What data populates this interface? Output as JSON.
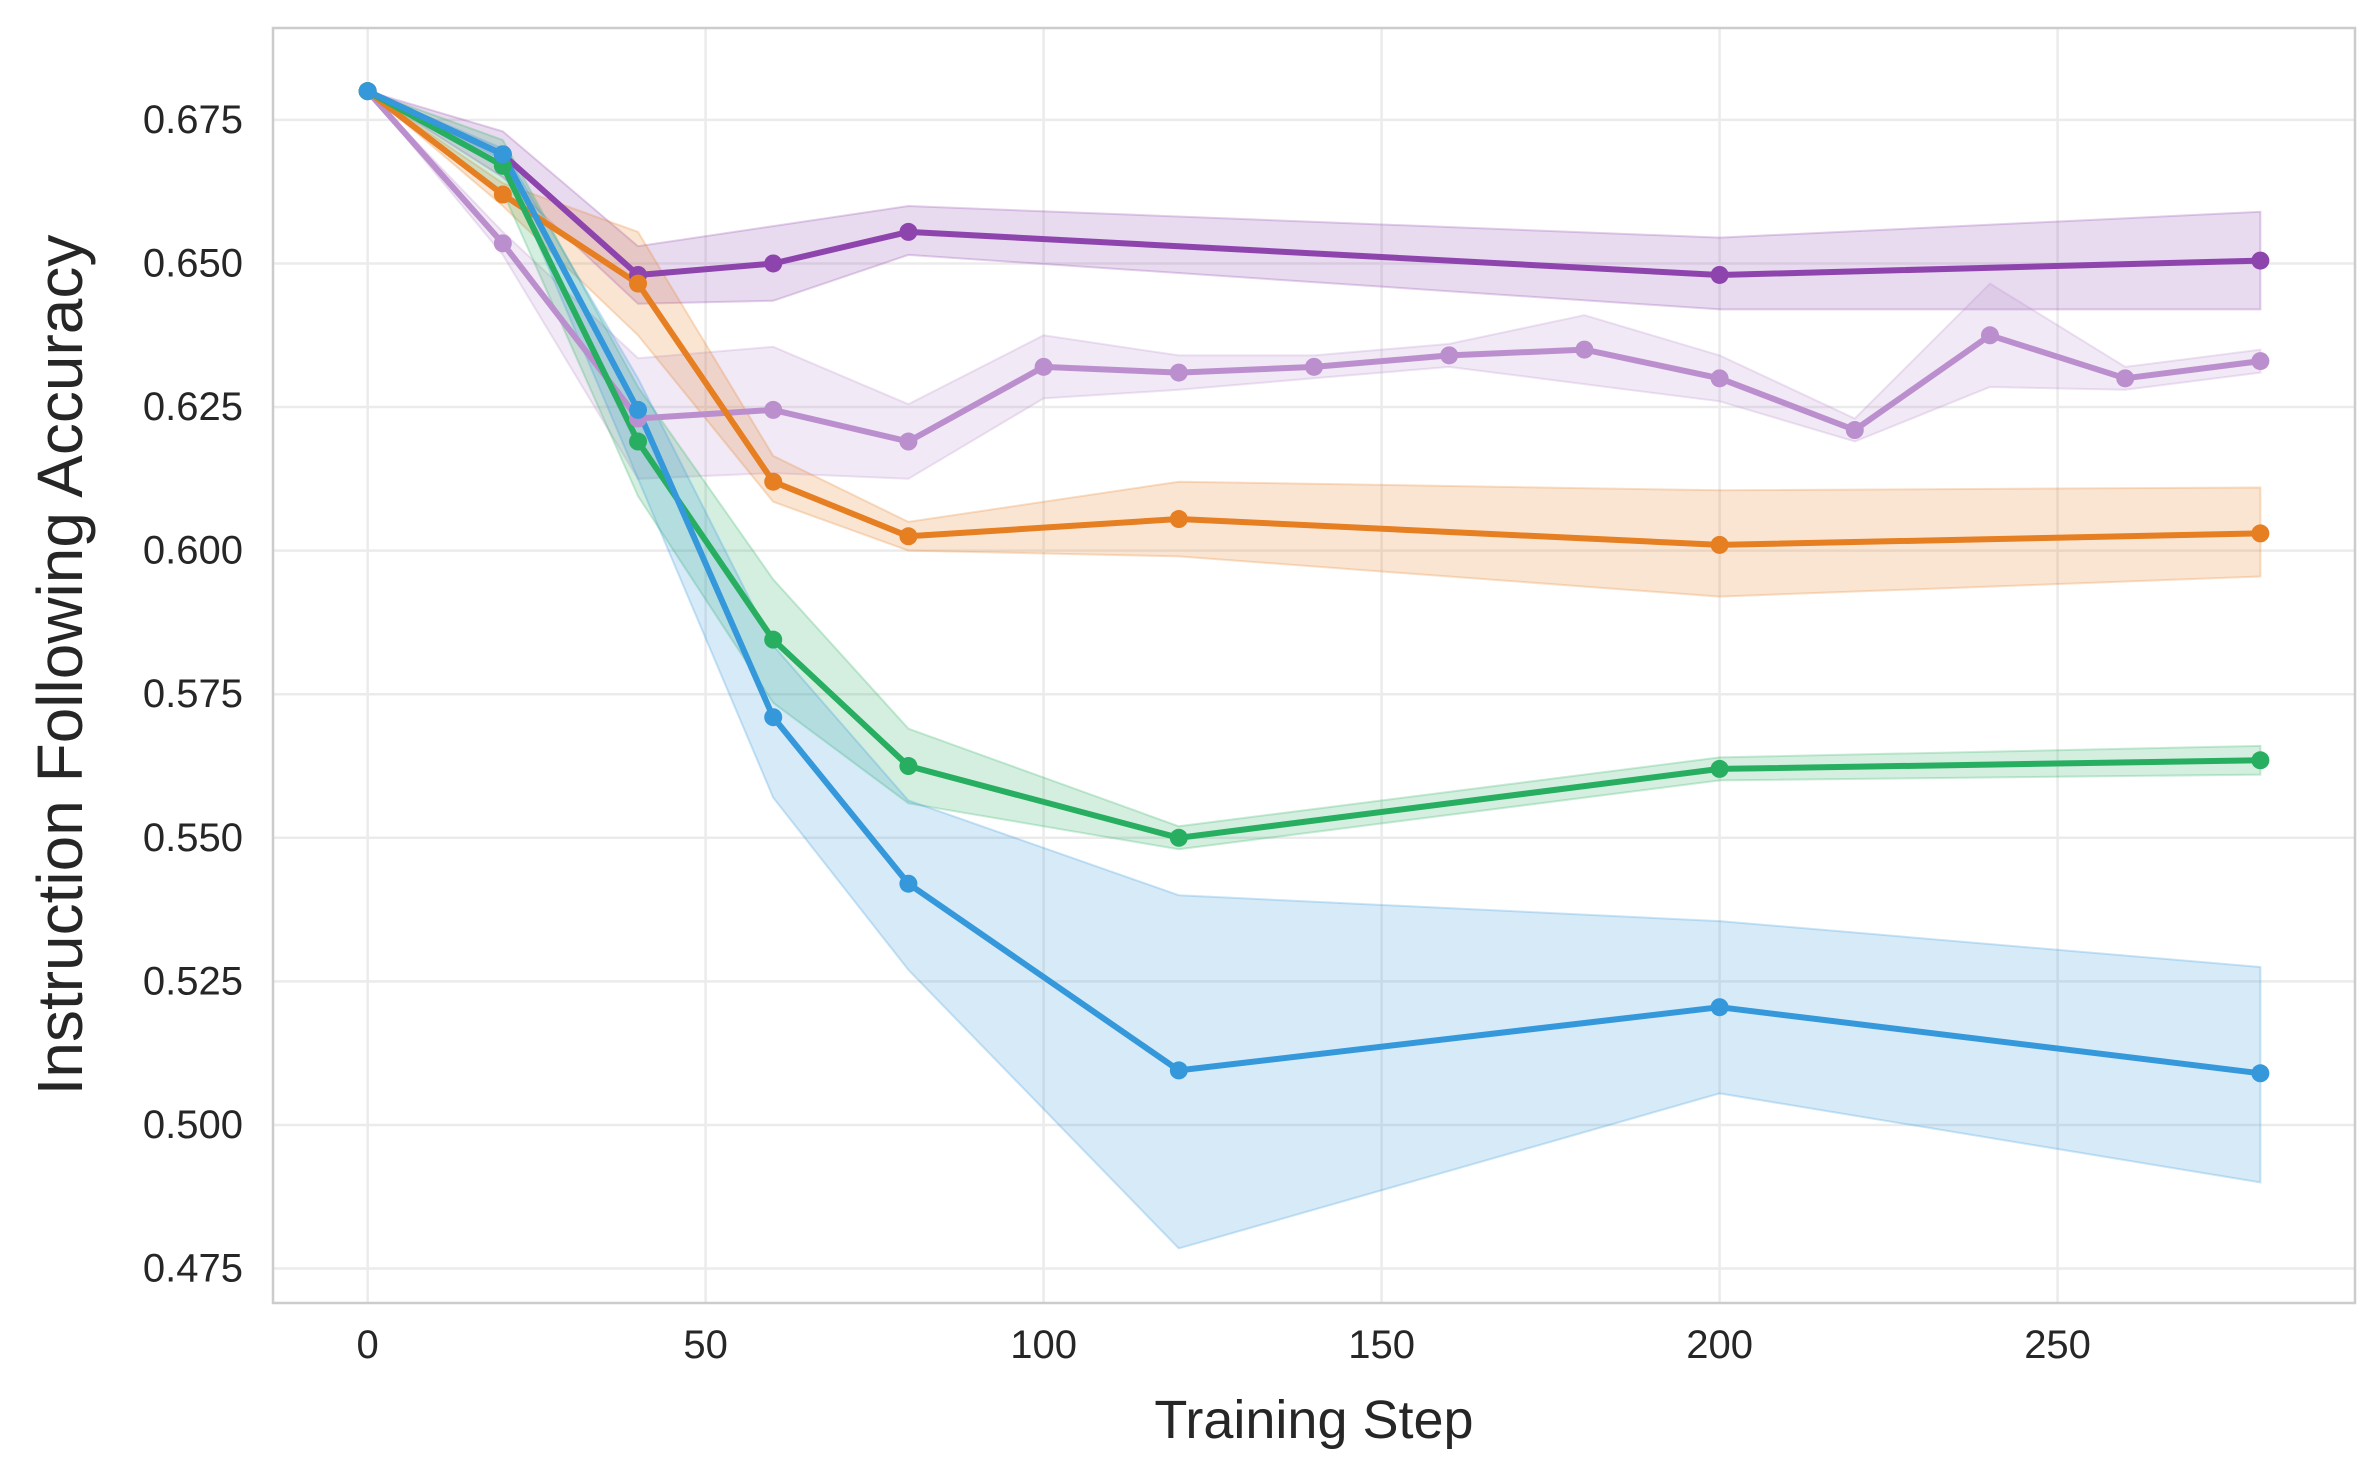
{
  "chart_data": {
    "type": "line",
    "title": "",
    "xlabel": "Training Step",
    "ylabel": "Instruction Following Accuracy",
    "xlim": [
      -14,
      294
    ],
    "ylim": [
      0.469,
      0.691
    ],
    "xticks": [
      0,
      50,
      100,
      150,
      200,
      250
    ],
    "xtick_labels": [
      "0",
      "50",
      "100",
      "150",
      "200",
      "250"
    ],
    "yticks": [
      0.475,
      0.5,
      0.525,
      0.55,
      0.575,
      0.6,
      0.625,
      0.65,
      0.675
    ],
    "ytick_labels": [
      "0.475",
      "0.500",
      "0.525",
      "0.550",
      "0.575",
      "0.600",
      "0.625",
      "0.650",
      "0.675"
    ],
    "grid": true,
    "legend": "none",
    "series": [
      {
        "name": "series-purple",
        "color": "#8e44ad",
        "x": [
          0,
          20,
          40,
          60,
          80,
          200,
          280
        ],
        "values": [
          0.68,
          0.669,
          0.648,
          0.65,
          0.6555,
          0.648,
          0.6505
        ],
        "upper": [
          0.68,
          0.673,
          0.653,
          0.6565,
          0.66,
          0.6545,
          0.659
        ],
        "lower": [
          0.68,
          0.665,
          0.643,
          0.6435,
          0.6515,
          0.642,
          0.642
        ]
      },
      {
        "name": "series-lavender",
        "color": "#bb8fce",
        "x": [
          0,
          20,
          40,
          60,
          80,
          100,
          120,
          140,
          160,
          180,
          200,
          220,
          240,
          260,
          280
        ],
        "values": [
          0.68,
          0.6535,
          0.623,
          0.6245,
          0.619,
          0.632,
          0.631,
          0.632,
          0.634,
          0.635,
          0.63,
          0.621,
          0.6375,
          0.63,
          0.633
        ],
        "upper": [
          0.68,
          0.6555,
          0.6335,
          0.6355,
          0.6255,
          0.6375,
          0.634,
          0.634,
          0.636,
          0.641,
          0.634,
          0.623,
          0.6465,
          0.632,
          0.635
        ],
        "lower": [
          0.68,
          0.6515,
          0.6125,
          0.6135,
          0.6125,
          0.6265,
          0.628,
          0.63,
          0.632,
          0.629,
          0.626,
          0.619,
          0.6285,
          0.628,
          0.631
        ]
      },
      {
        "name": "series-orange",
        "color": "#e67e22",
        "x": [
          0,
          20,
          40,
          60,
          80,
          120,
          200,
          280
        ],
        "values": [
          0.68,
          0.662,
          0.6465,
          0.612,
          0.6025,
          0.6055,
          0.601,
          0.603
        ],
        "upper": [
          0.68,
          0.664,
          0.6555,
          0.6165,
          0.605,
          0.612,
          0.6105,
          0.611
        ],
        "lower": [
          0.68,
          0.66,
          0.6375,
          0.6085,
          0.6,
          0.599,
          0.592,
          0.5955
        ]
      },
      {
        "name": "series-green",
        "color": "#27ae60",
        "x": [
          0,
          20,
          40,
          60,
          80,
          120,
          200,
          280
        ],
        "values": [
          0.68,
          0.667,
          0.619,
          0.5845,
          0.5625,
          0.55,
          0.562,
          0.5635
        ],
        "upper": [
          0.68,
          0.6715,
          0.6285,
          0.595,
          0.569,
          0.552,
          0.564,
          0.566
        ],
        "lower": [
          0.68,
          0.6625,
          0.6095,
          0.5735,
          0.556,
          0.548,
          0.56,
          0.561
        ]
      },
      {
        "name": "series-blue",
        "color": "#3498db",
        "x": [
          0,
          20,
          40,
          60,
          80,
          120,
          200,
          280
        ],
        "values": [
          0.68,
          0.669,
          0.6245,
          0.571,
          0.542,
          0.5095,
          0.5205,
          0.509
        ],
        "upper": [
          0.68,
          0.67,
          0.63,
          0.5835,
          0.5565,
          0.54,
          0.5355,
          0.5275
        ],
        "lower": [
          0.68,
          0.668,
          0.6125,
          0.557,
          0.527,
          0.4785,
          0.5055,
          0.49
        ]
      }
    ]
  }
}
